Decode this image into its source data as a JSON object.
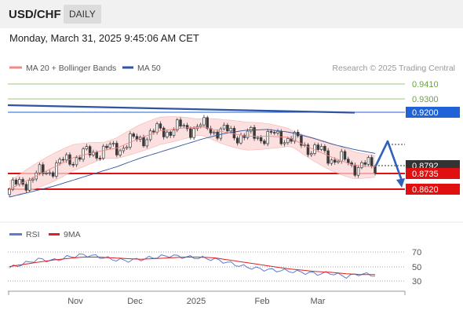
{
  "header": {
    "pair": "USD/CHF",
    "timeframe": "DAILY",
    "datetime": "Monday, March 31, 2025 9:45:06 AM CET"
  },
  "legend": {
    "bollinger": "MA 20 + Bollinger Bands",
    "ma50": "MA 50",
    "credit": "Research © 2025 Trading Central",
    "rsi": "RSI",
    "rsi_ma": "9MA"
  },
  "colors": {
    "candle": "#3a3a3a",
    "bollinger": "#f08a8a",
    "band_fill": "#fbd6d6",
    "ma50": "#2f54a0",
    "resistance_green": "#7fb24a",
    "resistance_blue": "#1f63d6",
    "support_red": "#e01010",
    "rsi": "#5b7bd5",
    "rsi_ma": "#dd2222",
    "price_tag": "#333333"
  },
  "chart_data": {
    "type": "line",
    "instrument": "USD/CHF",
    "x_labels": [
      "Nov",
      "Dec",
      "2025",
      "Feb",
      "Mar"
    ],
    "price_scale_levels": [
      0.941,
      0.93,
      0.92,
      0.8792,
      0.8735,
      0.862
    ],
    "last_price": 0.8792,
    "levels": [
      {
        "label": "0.9410",
        "value": 0.941,
        "kind": "resistance",
        "color": "#7fb24a"
      },
      {
        "label": "0.9300",
        "value": 0.93,
        "kind": "resistance",
        "color": "#7fb24a"
      },
      {
        "label": "0.9200",
        "value": 0.92,
        "kind": "resistance",
        "color": "#1f63d6"
      },
      {
        "label": "0.8735",
        "value": 0.8735,
        "kind": "pivot",
        "color": "#e01010"
      },
      {
        "label": "0.8620",
        "value": 0.862,
        "kind": "support",
        "color": "#e01010"
      }
    ],
    "series": [
      {
        "name": "MA 50",
        "values": [
          0.856,
          0.86,
          0.864,
          0.869,
          0.874,
          0.879,
          0.885,
          0.89,
          0.895,
          0.9,
          0.904,
          0.9065,
          0.907,
          0.905,
          0.901,
          0.896,
          0.892,
          0.889
        ]
      },
      {
        "name": "MA 20 + Bollinger Bands",
        "values": [
          0.862,
          0.87,
          0.878,
          0.886,
          0.89,
          0.893,
          0.9,
          0.906,
          0.908,
          0.909,
          0.905,
          0.902,
          0.902,
          0.901,
          0.893,
          0.886,
          0.88,
          0.879
        ]
      }
    ],
    "rsi": {
      "ticks": [
        70,
        50,
        30
      ],
      "values": [
        48,
        54,
        60,
        58,
        63,
        66,
        64,
        60,
        58,
        60,
        63,
        65,
        63,
        62,
        60,
        55,
        50,
        47,
        45,
        44,
        42,
        40,
        41,
        36,
        40,
        38
      ],
      "ma9": [
        50,
        53,
        56,
        59,
        61,
        63,
        63,
        62,
        61,
        60,
        61,
        62,
        63,
        63,
        62,
        59,
        56,
        53,
        50,
        47,
        45,
        43,
        42,
        40,
        39,
        39
      ]
    }
  }
}
